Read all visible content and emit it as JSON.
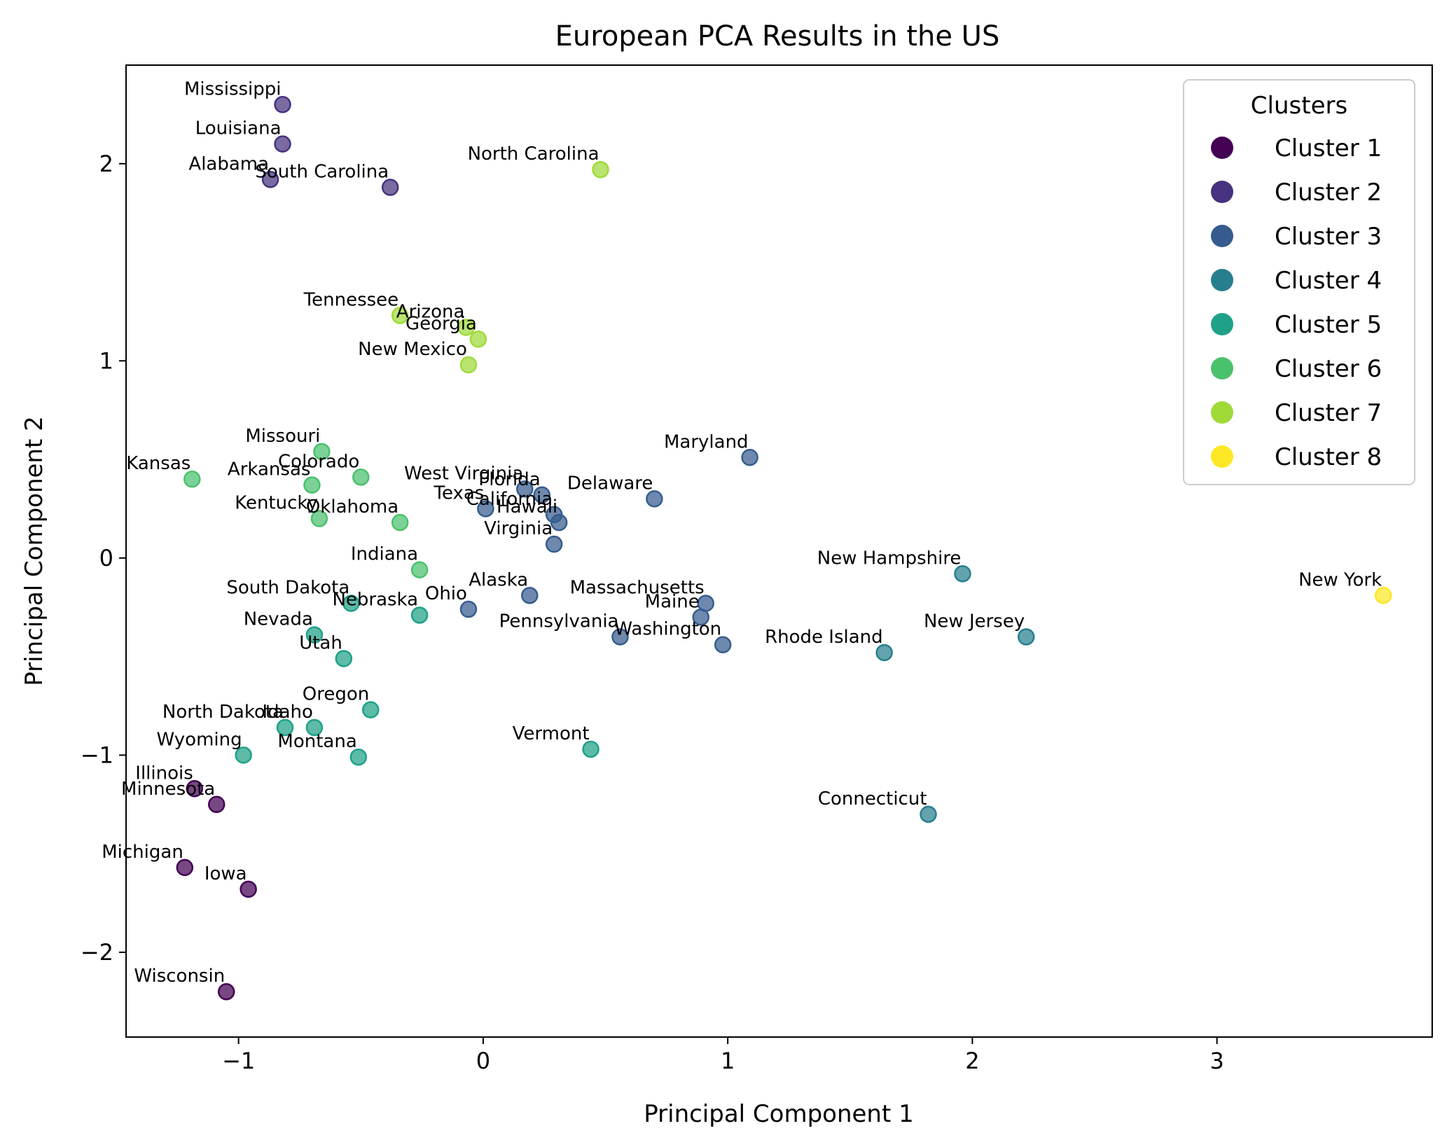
{
  "chart_data": {
    "type": "scatter",
    "title": "European PCA Results in the US",
    "xlabel": "Principal Component 1",
    "ylabel": "Principal Component 2",
    "xlim": [
      -1.46,
      3.88
    ],
    "ylim": [
      -2.43,
      2.5
    ],
    "xticks": [
      {
        "v": -1,
        "label": "−1"
      },
      {
        "v": 0,
        "label": "0"
      },
      {
        "v": 1,
        "label": "1"
      },
      {
        "v": 2,
        "label": "2"
      },
      {
        "v": 3,
        "label": "3"
      }
    ],
    "yticks": [
      {
        "v": -2,
        "label": "−2"
      },
      {
        "v": -1,
        "label": "−1"
      },
      {
        "v": 0,
        "label": "0"
      },
      {
        "v": 1,
        "label": "1"
      },
      {
        "v": 2,
        "label": "2"
      }
    ],
    "grid": false,
    "legend": {
      "title": "Clusters",
      "placement": "top-right",
      "entries": [
        "Cluster 1",
        "Cluster 2",
        "Cluster 3",
        "Cluster 4",
        "Cluster 5",
        "Cluster 6",
        "Cluster 7",
        "Cluster 8"
      ]
    },
    "cluster_colors": [
      "#440154",
      "#46327e",
      "#365c8d",
      "#277f8e",
      "#1fa187",
      "#4ac16d",
      "#a0da39",
      "#fde725"
    ],
    "points": [
      {
        "label": "Mississippi",
        "x": -0.82,
        "y": 2.3,
        "cluster": 2
      },
      {
        "label": "Louisiana",
        "x": -0.82,
        "y": 2.1,
        "cluster": 2
      },
      {
        "label": "Alabama",
        "x": -0.87,
        "y": 1.92,
        "cluster": 2
      },
      {
        "label": "South Carolina",
        "x": -0.38,
        "y": 1.88,
        "cluster": 2
      },
      {
        "label": "North Carolina",
        "x": 0.48,
        "y": 1.97,
        "cluster": 7
      },
      {
        "label": "Tennessee",
        "x": -0.34,
        "y": 1.23,
        "cluster": 7
      },
      {
        "label": "Arizona",
        "x": -0.07,
        "y": 1.17,
        "cluster": 7
      },
      {
        "label": "Georgia",
        "x": -0.02,
        "y": 1.11,
        "cluster": 7
      },
      {
        "label": "New Mexico",
        "x": -0.06,
        "y": 0.98,
        "cluster": 7
      },
      {
        "label": "Missouri",
        "x": -0.66,
        "y": 0.54,
        "cluster": 6
      },
      {
        "label": "Kansas",
        "x": -1.19,
        "y": 0.4,
        "cluster": 6
      },
      {
        "label": "Arkansas",
        "x": -0.7,
        "y": 0.37,
        "cluster": 6
      },
      {
        "label": "Colorado",
        "x": -0.5,
        "y": 0.41,
        "cluster": 6
      },
      {
        "label": "Kentucky",
        "x": -0.67,
        "y": 0.2,
        "cluster": 6
      },
      {
        "label": "Oklahoma",
        "x": -0.34,
        "y": 0.18,
        "cluster": 6
      },
      {
        "label": "West Virginia",
        "x": 0.17,
        "y": 0.35,
        "cluster": 3
      },
      {
        "label": "Florida",
        "x": 0.24,
        "y": 0.32,
        "cluster": 3
      },
      {
        "label": "Delaware",
        "x": 0.7,
        "y": 0.3,
        "cluster": 3
      },
      {
        "label": "Texas",
        "x": 0.01,
        "y": 0.25,
        "cluster": 3
      },
      {
        "label": "California",
        "x": 0.29,
        "y": 0.22,
        "cluster": 3
      },
      {
        "label": "Hawaii",
        "x": 0.31,
        "y": 0.18,
        "cluster": 3
      },
      {
        "label": "Virginia",
        "x": 0.29,
        "y": 0.07,
        "cluster": 3
      },
      {
        "label": "Maryland",
        "x": 1.09,
        "y": 0.51,
        "cluster": 3
      },
      {
        "label": "Indiana",
        "x": -0.26,
        "y": -0.06,
        "cluster": 6
      },
      {
        "label": "South Dakota",
        "x": -0.54,
        "y": -0.23,
        "cluster": 5
      },
      {
        "label": "Nebraska",
        "x": -0.26,
        "y": -0.29,
        "cluster": 5
      },
      {
        "label": "Ohio",
        "x": -0.06,
        "y": -0.26,
        "cluster": 3
      },
      {
        "label": "Alaska",
        "x": 0.19,
        "y": -0.19,
        "cluster": 3
      },
      {
        "label": "Massachusetts",
        "x": 0.91,
        "y": -0.23,
        "cluster": 3
      },
      {
        "label": "Maine",
        "x": 0.89,
        "y": -0.3,
        "cluster": 3
      },
      {
        "label": "Pennsylvania",
        "x": 0.56,
        "y": -0.4,
        "cluster": 3
      },
      {
        "label": "Washington",
        "x": 0.98,
        "y": -0.44,
        "cluster": 3
      },
      {
        "label": "Nevada",
        "x": -0.69,
        "y": -0.39,
        "cluster": 5
      },
      {
        "label": "Utah",
        "x": -0.57,
        "y": -0.51,
        "cluster": 5
      },
      {
        "label": "New Hampshire",
        "x": 1.96,
        "y": -0.08,
        "cluster": 4
      },
      {
        "label": "New York",
        "x": 3.68,
        "y": -0.19,
        "cluster": 8
      },
      {
        "label": "New Jersey",
        "x": 2.22,
        "y": -0.4,
        "cluster": 4
      },
      {
        "label": "Rhode Island",
        "x": 1.64,
        "y": -0.48,
        "cluster": 4
      },
      {
        "label": "Oregon",
        "x": -0.46,
        "y": -0.77,
        "cluster": 5
      },
      {
        "label": "North Dakota",
        "x": -0.81,
        "y": -0.86,
        "cluster": 5
      },
      {
        "label": "Idaho",
        "x": -0.69,
        "y": -0.86,
        "cluster": 5
      },
      {
        "label": "Wyoming",
        "x": -0.98,
        "y": -1.0,
        "cluster": 5
      },
      {
        "label": "Montana",
        "x": -0.51,
        "y": -1.01,
        "cluster": 5
      },
      {
        "label": "Vermont",
        "x": 0.44,
        "y": -0.97,
        "cluster": 5
      },
      {
        "label": "Illinois",
        "x": -1.18,
        "y": -1.17,
        "cluster": 1
      },
      {
        "label": "Minnesota",
        "x": -1.09,
        "y": -1.25,
        "cluster": 1
      },
      {
        "label": "Connecticut",
        "x": 1.82,
        "y": -1.3,
        "cluster": 4
      },
      {
        "label": "Michigan",
        "x": -1.22,
        "y": -1.57,
        "cluster": 1
      },
      {
        "label": "Iowa",
        "x": -0.96,
        "y": -1.68,
        "cluster": 1
      },
      {
        "label": "Wisconsin",
        "x": -1.05,
        "y": -2.2,
        "cluster": 1
      }
    ]
  }
}
